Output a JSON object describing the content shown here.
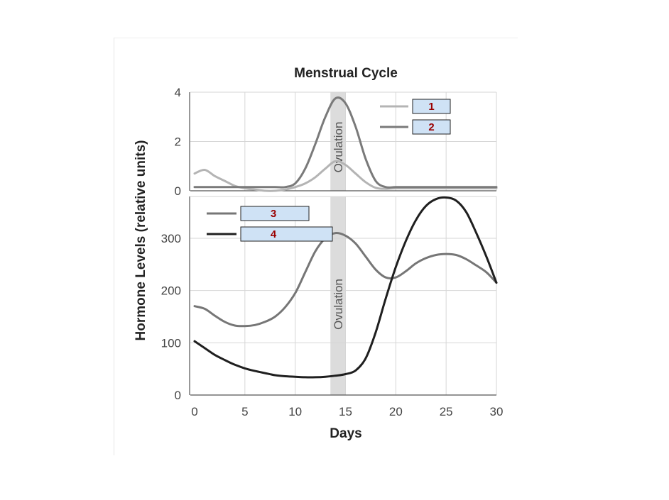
{
  "chart_data": [
    {
      "type": "line",
      "title": "Menstrual Cycle",
      "xlabel": "Days",
      "ylabel": "Hormone Levels (relative units)",
      "xlim": [
        0,
        30
      ],
      "ylim": [
        0,
        4
      ],
      "xticks": [
        0,
        5,
        10,
        15,
        20,
        25,
        30
      ],
      "yticks": [
        0,
        2,
        4
      ],
      "grid": true,
      "legend_position": "top-right",
      "annotation": "Ovulation",
      "ovulation_band": [
        13.5,
        15
      ],
      "series": [
        {
          "name": "1",
          "color": "#b4b4b4",
          "x": [
            0,
            1,
            2,
            3,
            4,
            5,
            6,
            7,
            8,
            9,
            10,
            11,
            12,
            13,
            14,
            15,
            16,
            17,
            18,
            19,
            20,
            22,
            24,
            26,
            28,
            30
          ],
          "y": [
            0.7,
            0.85,
            0.6,
            0.4,
            0.2,
            0.1,
            0.05,
            0.0,
            0.0,
            0.05,
            0.15,
            0.3,
            0.55,
            0.9,
            1.2,
            1.05,
            0.7,
            0.35,
            0.12,
            0.08,
            0.1,
            0.1,
            0.1,
            0.1,
            0.1,
            0.1
          ]
        },
        {
          "name": "2",
          "color": "#7a7a7a",
          "x": [
            0,
            2,
            4,
            6,
            8,
            9,
            10,
            11,
            12,
            13,
            14,
            15,
            16,
            17,
            18,
            19,
            20,
            22,
            24,
            26,
            28,
            30
          ],
          "y": [
            0.15,
            0.15,
            0.15,
            0.15,
            0.15,
            0.15,
            0.3,
            0.9,
            1.9,
            3.0,
            3.75,
            3.55,
            2.6,
            1.3,
            0.4,
            0.15,
            0.15,
            0.15,
            0.15,
            0.15,
            0.15,
            0.15
          ]
        }
      ]
    },
    {
      "type": "line",
      "xlabel": "Days",
      "ylabel": "Hormone Levels (relative units)",
      "xlim": [
        0,
        30
      ],
      "ylim": [
        0,
        380
      ],
      "xticks": [
        0,
        5,
        10,
        15,
        20,
        25,
        30
      ],
      "yticks": [
        0,
        100,
        200,
        300
      ],
      "grid": true,
      "legend_position": "top-left",
      "annotation": "Ovulation",
      "ovulation_band": [
        13.5,
        15
      ],
      "series": [
        {
          "name": "3",
          "color": "#767676",
          "x": [
            0,
            1,
            2,
            3,
            4,
            5,
            6,
            7,
            8,
            9,
            10,
            11,
            12,
            13,
            14,
            15,
            16,
            17,
            18,
            19,
            20,
            21,
            22,
            23,
            24,
            25,
            26,
            27,
            28,
            29,
            30
          ],
          "y": [
            170,
            165,
            152,
            140,
            133,
            132,
            134,
            140,
            150,
            168,
            195,
            235,
            275,
            300,
            310,
            305,
            290,
            265,
            240,
            225,
            225,
            237,
            252,
            262,
            268,
            270,
            268,
            260,
            248,
            235,
            215
          ]
        },
        {
          "name": "4",
          "color": "#1f1f1f",
          "x": [
            0,
            1,
            2,
            3,
            4,
            5,
            6,
            7,
            8,
            9,
            10,
            11,
            12,
            13,
            14,
            15,
            16,
            17,
            18,
            19,
            20,
            21,
            22,
            23,
            24,
            25,
            26,
            27,
            28,
            29,
            30
          ],
          "y": [
            103,
            90,
            77,
            67,
            58,
            51,
            46,
            42,
            38,
            36,
            35,
            34,
            34,
            35,
            37,
            40,
            47,
            70,
            120,
            185,
            245,
            295,
            335,
            362,
            375,
            378,
            372,
            350,
            310,
            265,
            215
          ]
        }
      ]
    }
  ]
}
